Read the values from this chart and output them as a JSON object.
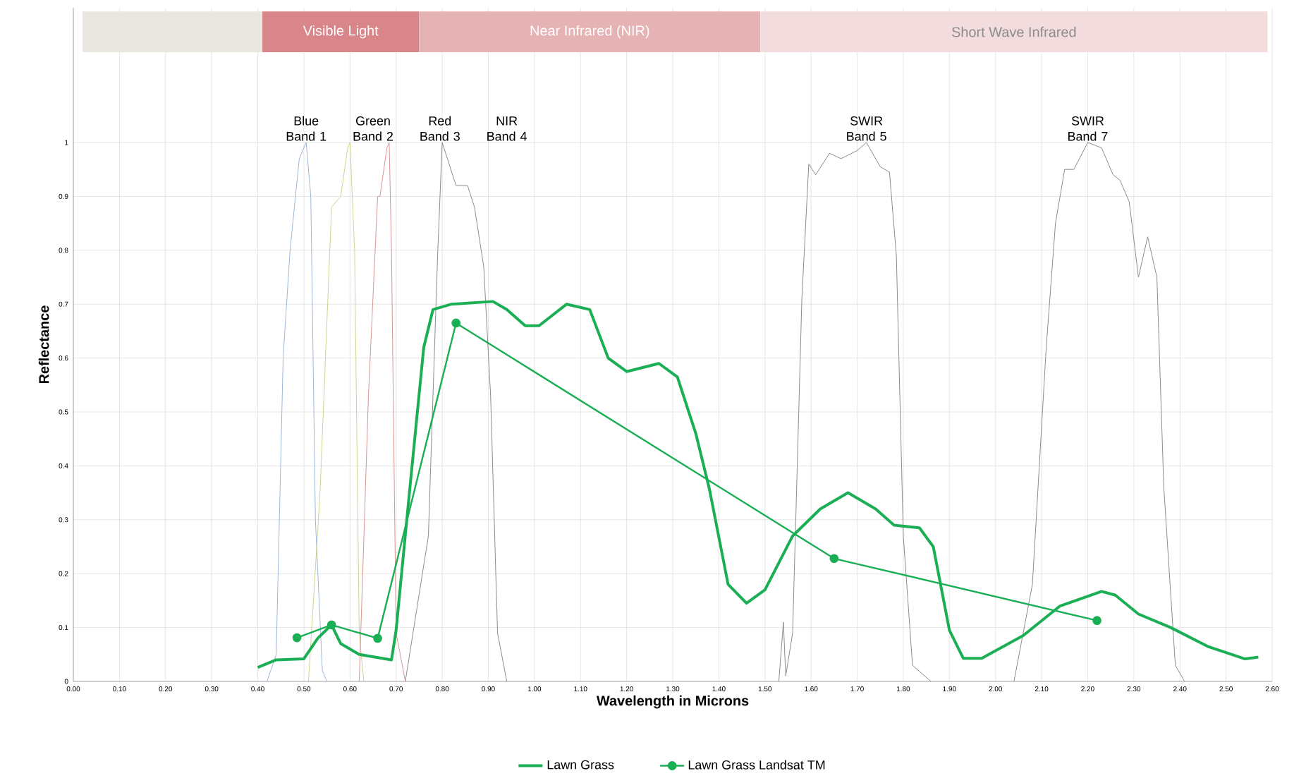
{
  "chart_data": [
    {
      "type": "line",
      "xlabel": "Wavelength in Microns",
      "ylabel": "Reflectance",
      "xlim": [
        0,
        2.6
      ],
      "ylim": [
        0,
        1.25
      ],
      "bands": [
        {
          "axis": "x",
          "from": 0.02,
          "to": 0.41,
          "color": "#e9e7df"
        },
        {
          "axis": "x",
          "from": 0.41,
          "to": 0.75,
          "label": "Visible Light",
          "color": "#d9868b"
        },
        {
          "axis": "x",
          "from": 0.75,
          "to": 1.49,
          "label": "Near Infrared (NIR)",
          "color": "#e6b3b5"
        },
        {
          "axis": "x",
          "from": 1.49,
          "to": 2.59,
          "label": "Short Wave Infrared",
          "color": "#f3dcdd"
        }
      ],
      "xticks": [
        {
          "value": 0,
          "label": "0.00"
        },
        {
          "value": 0.1,
          "label": "0.10"
        },
        {
          "value": 0.2,
          "label": "0.20"
        },
        {
          "value": 0.3,
          "label": "0.30"
        },
        {
          "value": 0.4,
          "label": "0.40"
        },
        {
          "value": 0.5,
          "label": "0.50"
        },
        {
          "value": 0.6,
          "label": "0.60"
        },
        {
          "value": 0.7,
          "label": "0.70"
        },
        {
          "value": 0.8,
          "label": "0.80"
        },
        {
          "value": 0.9,
          "label": "0.90"
        },
        {
          "value": 1.0,
          "label": "1.00"
        },
        {
          "value": 1.1,
          "label": "1.10"
        },
        {
          "value": 1.2,
          "label": "1.20"
        },
        {
          "value": 1.3,
          "label": "1.30"
        },
        {
          "value": 1.4,
          "label": "1.40"
        },
        {
          "value": 1.5,
          "label": "1.50"
        },
        {
          "value": 1.6,
          "label": "1.60"
        },
        {
          "value": 1.7,
          "label": "1.70"
        },
        {
          "value": 1.8,
          "label": "1.80"
        },
        {
          "value": 1.9,
          "label": "1.90"
        },
        {
          "value": 2.0,
          "label": "2.00"
        },
        {
          "value": 2.1,
          "label": "2.10"
        },
        {
          "value": 2.2,
          "label": "2.20"
        },
        {
          "value": 2.3,
          "label": "2.30"
        },
        {
          "value": 2.4,
          "label": "2.40"
        },
        {
          "value": 2.5,
          "label": "2.50"
        },
        {
          "value": 2.6,
          "label": "2.60"
        }
      ],
      "yticks": [
        0,
        0.1,
        0.2,
        0.3,
        0.4,
        0.5,
        0.6,
        0.7,
        0.8,
        0.9,
        1
      ],
      "grid": true,
      "legend": "bottom",
      "series": [
        {
          "color": "#9db5d6",
          "x": [
            0.42,
            0.44,
            0.455,
            0.47,
            0.49,
            0.505,
            0.515,
            0.525,
            0.54,
            0.55
          ],
          "values": [
            0,
            0.05,
            0.6,
            0.8,
            0.97,
            1,
            0.9,
            0.3,
            0.02,
            0
          ]
        },
        {
          "color": "#cfd490",
          "x": [
            0.51,
            0.535,
            0.56,
            0.58,
            0.595,
            0.6,
            0.61,
            0.62,
            0.63
          ],
          "values": [
            0,
            0.35,
            0.88,
            0.9,
            0.99,
            1,
            0.8,
            0.09,
            0
          ]
        },
        {
          "color": "#d99494",
          "x": [
            0.62,
            0.64,
            0.66,
            0.665,
            0.68,
            0.685,
            0.69,
            0.7,
            0.72
          ],
          "values": [
            0,
            0.53,
            0.9,
            0.9,
            0.99,
            1,
            0.8,
            0.09,
            0
          ]
        },
        {
          "color": "#8c8c8c",
          "x": [
            0.72,
            0.77,
            0.79,
            0.8,
            0.83,
            0.855,
            0.87,
            0.89,
            0.905,
            0.92,
            0.94
          ],
          "values": [
            0,
            0.27,
            0.79,
            1,
            0.92,
            0.92,
            0.88,
            0.77,
            0.53,
            0.09,
            0
          ]
        },
        {
          "color": "#8c8c8c",
          "x": [
            1.53,
            1.54,
            1.545,
            1.56,
            1.58,
            1.595,
            1.61,
            1.64,
            1.665,
            1.7,
            1.72,
            1.75,
            1.77,
            1.785,
            1.8,
            1.82,
            1.86
          ],
          "values": [
            0,
            0.11,
            0.01,
            0.09,
            0.71,
            0.96,
            0.94,
            0.98,
            0.97,
            0.985,
            1,
            0.955,
            0.945,
            0.79,
            0.27,
            0.03,
            0
          ]
        },
        {
          "color": "#8c8c8c",
          "x": [
            2.04,
            2.08,
            2.11,
            2.13,
            2.15,
            2.17,
            2.2,
            2.23,
            2.255,
            2.27,
            2.29,
            2.31,
            2.33,
            2.35,
            2.365,
            2.39,
            2.41
          ],
          "values": [
            0,
            0.18,
            0.62,
            0.85,
            0.95,
            0.95,
            1,
            0.99,
            0.94,
            0.93,
            0.89,
            0.75,
            0.825,
            0.75,
            0.36,
            0.03,
            0
          ]
        },
        {
          "name": "Lawn Grass",
          "color": "#1aaf54",
          "marker": "none",
          "x": [
            0.4,
            0.44,
            0.5,
            0.53,
            0.56,
            0.58,
            0.62,
            0.69,
            0.7,
            0.73,
            0.76,
            0.78,
            0.82,
            0.91,
            0.94,
            0.98,
            1.01,
            1.07,
            1.12,
            1.16,
            1.2,
            1.27,
            1.31,
            1.35,
            1.38,
            1.42,
            1.46,
            1.5,
            1.56,
            1.62,
            1.68,
            1.74,
            1.78,
            1.835,
            1.865,
            1.9,
            1.93,
            1.97,
            2.06,
            2.14,
            2.23,
            2.26,
            2.31,
            2.38,
            2.46,
            2.54,
            2.57
          ],
          "values": [
            0.026,
            0.04,
            0.042,
            0.08,
            0.105,
            0.07,
            0.05,
            0.04,
            0.095,
            0.36,
            0.62,
            0.69,
            0.7,
            0.705,
            0.69,
            0.66,
            0.66,
            0.7,
            0.69,
            0.6,
            0.575,
            0.59,
            0.565,
            0.46,
            0.355,
            0.18,
            0.145,
            0.17,
            0.27,
            0.32,
            0.35,
            0.32,
            0.29,
            0.285,
            0.25,
            0.095,
            0.043,
            0.043,
            0.085,
            0.14,
            0.167,
            0.16,
            0.125,
            0.1,
            0.065,
            0.042,
            0.045
          ]
        },
        {
          "name": "Lawn Grass Landsat TM",
          "color": "#1aaf54",
          "marker": "circle",
          "x": [
            0.485,
            0.56,
            0.66,
            0.83,
            1.65,
            2.22
          ],
          "values": [
            0.081,
            0.105,
            0.08,
            0.665,
            0.228,
            0.113
          ]
        }
      ],
      "annotations": [
        "Blue Band 1",
        "Green Band 2",
        "Red Band 3",
        "NIR Band 4",
        "SWIR Band 5",
        "SWIR Band 7"
      ]
    }
  ]
}
